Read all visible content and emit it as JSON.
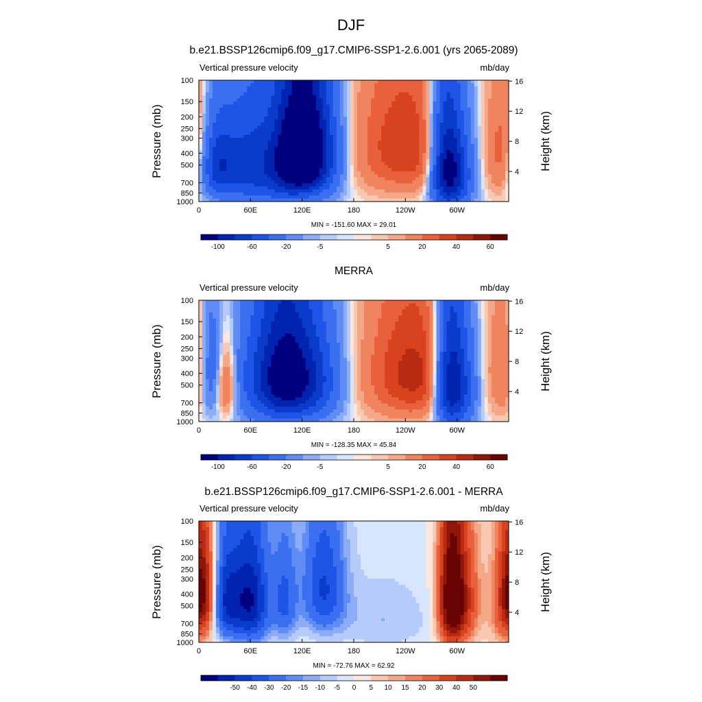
{
  "figure": {
    "title": "DJF"
  },
  "palettes": {
    "abs": [
      "#00007f",
      "#0024b0",
      "#0a3ccc",
      "#1e55e6",
      "#3a6ff0",
      "#5f8cf5",
      "#8cacf8",
      "#b5ccfa",
      "#d8e6fd",
      "#fde7dc",
      "#f9c8b2",
      "#f5a888",
      "#f0845f",
      "#e8613c",
      "#d8431f",
      "#b92a12",
      "#8f1608",
      "#6a0404"
    ],
    "diff": [
      "#00007f",
      "#0024b0",
      "#0a3ccc",
      "#1e55e6",
      "#3a6ff0",
      "#5f8cf5",
      "#8cacf8",
      "#b5ccfa",
      "#d8e6fd",
      "#fde7dc",
      "#f9c8b2",
      "#f5a888",
      "#f0845f",
      "#e8613c",
      "#d8431f",
      "#b92a12",
      "#8f1608",
      "#6a0404"
    ]
  },
  "chart_data": [
    {
      "type": "heatmap",
      "title": "b.e21.BSSP126cmip6.f09_g17.CMIP6-SSP1-2.6.001 (yrs 2065-2089)",
      "left_label": "Vertical pressure velocity",
      "right_label": "mb/day",
      "ylabel": "Pressure (mb)",
      "y2label": "Height (km)",
      "stats": "MIN = -151.60  MAX =  29.01",
      "x_ticks": [
        "0",
        "60E",
        "120E",
        "180",
        "120W",
        "60W"
      ],
      "x_tick_lon": [
        0,
        60,
        120,
        180,
        240,
        300
      ],
      "xlim": [
        0,
        360
      ],
      "y_ticks": [
        "100",
        "150",
        "200",
        "250",
        "300",
        "400",
        "500",
        "700",
        "850",
        "1000"
      ],
      "y_tick_p": [
        100,
        150,
        200,
        250,
        300,
        400,
        500,
        700,
        850,
        1000
      ],
      "ylim_p": [
        100,
        1000
      ],
      "y2_ticks": [
        "4",
        "8",
        "12",
        "16"
      ],
      "y2_tick_km": [
        4,
        8,
        12,
        16
      ],
      "colorbar_levels": [
        -100,
        -80,
        -60,
        -40,
        -20,
        -10,
        -5,
        -2,
        0,
        2,
        5,
        10,
        20,
        30,
        40,
        50,
        60,
        80
      ],
      "colorbar_labels": [
        "-100",
        "-60",
        "-20",
        "-5",
        "5",
        "20",
        "40",
        "60"
      ],
      "palette": "abs",
      "field": {
        "lon_centers": [
          20,
          60,
          100,
          120,
          140,
          240,
          285,
          300,
          355
        ],
        "lon_widths": [
          14,
          26,
          16,
          14,
          18,
          40,
          12,
          14,
          14
        ],
        "p_centers": [
          500,
          500,
          450,
          380,
          400,
          350,
          500,
          550,
          400
        ],
        "p_widths": [
          250,
          350,
          350,
          300,
          320,
          300,
          400,
          350,
          300
        ],
        "amplitudes": [
          -60,
          -70,
          -70,
          -90,
          -85,
          40,
          -80,
          -70,
          30
        ]
      }
    },
    {
      "type": "heatmap",
      "title": "MERRA",
      "left_label": "Vertical pressure velocity",
      "right_label": "mb/day",
      "ylabel": "Pressure (mb)",
      "y2label": "Height (km)",
      "stats": "MIN = -128.35  MAX =  45.84",
      "x_ticks": [
        "0",
        "60E",
        "120E",
        "180",
        "120W",
        "60W"
      ],
      "x_tick_lon": [
        0,
        60,
        120,
        180,
        240,
        300
      ],
      "xlim": [
        0,
        360
      ],
      "y_ticks": [
        "100",
        "150",
        "200",
        "250",
        "300",
        "400",
        "500",
        "700",
        "850",
        "1000"
      ],
      "y_tick_p": [
        100,
        150,
        200,
        250,
        300,
        400,
        500,
        700,
        850,
        1000
      ],
      "ylim_p": [
        100,
        1000
      ],
      "y2_ticks": [
        "4",
        "8",
        "12",
        "16"
      ],
      "y2_tick_km": [
        4,
        8,
        12,
        16
      ],
      "colorbar_levels": [
        -100,
        -80,
        -60,
        -40,
        -20,
        -10,
        -5,
        -2,
        0,
        2,
        5,
        10,
        20,
        30,
        40,
        50,
        60,
        80
      ],
      "colorbar_labels": [
        "-100",
        "-60",
        "-20",
        "-5",
        "5",
        "20",
        "40",
        "60"
      ],
      "palette": "abs",
      "field": {
        "lon_centers": [
          15,
          30,
          75,
          100,
          130,
          250,
          290,
          305,
          360
        ],
        "lon_widths": [
          10,
          10,
          26,
          20,
          24,
          40,
          12,
          14,
          16
        ],
        "p_centers": [
          400,
          500,
          450,
          400,
          450,
          400,
          450,
          500,
          400
        ],
        "p_widths": [
          300,
          250,
          350,
          350,
          330,
          330,
          400,
          350,
          300
        ],
        "amplitudes": [
          -50,
          40,
          -55,
          -60,
          -70,
          45,
          -80,
          -60,
          25
        ]
      }
    },
    {
      "type": "heatmap",
      "title": "b.e21.BSSP126cmip6.f09_g17.CMIP6-SSP1-2.6.001 - MERRA",
      "left_label": "Vertical pressure velocity",
      "right_label": "mb/day",
      "ylabel": "Pressure (mb)",
      "y2label": "Height (km)",
      "stats": "MIN = -72.76  MAX =  62.92",
      "x_ticks": [
        "0",
        "60E",
        "120E",
        "180",
        "120W",
        "60W"
      ],
      "x_tick_lon": [
        0,
        60,
        120,
        180,
        240,
        300
      ],
      "xlim": [
        0,
        360
      ],
      "y_ticks": [
        "100",
        "150",
        "200",
        "250",
        "300",
        "400",
        "500",
        "700",
        "850",
        "1000"
      ],
      "y_tick_p": [
        100,
        150,
        200,
        250,
        300,
        400,
        500,
        700,
        850,
        1000
      ],
      "ylim_p": [
        100,
        1000
      ],
      "y2_ticks": [
        "4",
        "8",
        "12",
        "16"
      ],
      "y2_tick_km": [
        4,
        8,
        12,
        16
      ],
      "colorbar_levels": [
        -60,
        -50,
        -40,
        -30,
        -20,
        -15,
        -10,
        -5,
        0,
        5,
        10,
        15,
        20,
        30,
        40,
        50,
        60,
        70
      ],
      "colorbar_labels": [
        "-50",
        "-40",
        "-30",
        "-20",
        "-15",
        "-10",
        "-5",
        "0",
        "5",
        "10",
        "15",
        "20",
        "30",
        "40",
        "50"
      ],
      "palette": "diff",
      "field": {
        "lon_centers": [
          4,
          30,
          60,
          100,
          145,
          215,
          292,
          305,
          360
        ],
        "lon_widths": [
          10,
          12,
          16,
          10,
          18,
          40,
          10,
          14,
          14
        ],
        "p_centers": [
          350,
          450,
          450,
          450,
          350,
          650,
          450,
          450,
          500
        ],
        "p_widths": [
          250,
          300,
          350,
          300,
          300,
          300,
          400,
          350,
          350
        ],
        "amplitudes": [
          40,
          -45,
          -60,
          -30,
          -40,
          -10,
          55,
          45,
          35
        ]
      }
    }
  ]
}
